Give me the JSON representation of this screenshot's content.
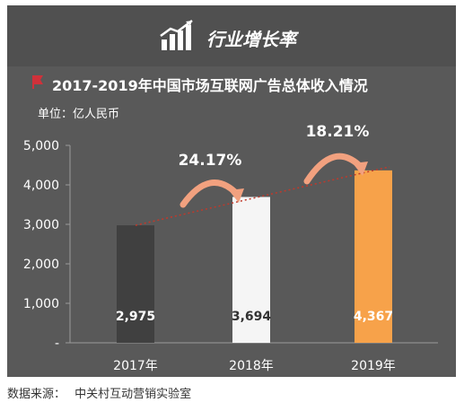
{
  "header": {
    "title": "行业增长率",
    "icon": "growth-bars-icon"
  },
  "subtitle": "2017-2019年中国市场互联网广告总体收入情况",
  "unit": "单位：亿人民币",
  "growth_labels": [
    "24.17%",
    "18.21%"
  ],
  "footer": {
    "label": "数据来源：",
    "source": "中关村互动营销实验室"
  },
  "colors": {
    "panel": "#595959",
    "bar_2017": "#404040",
    "bar_2018": "#f5f5f5",
    "bar_2019": "#f7a24a",
    "arrow": "#f2a17f",
    "trend": "#c0392b",
    "flag": "#d0313a"
  },
  "chart_data": {
    "type": "bar",
    "title": "2017-2019年中国市场互联网广告总体收入情况",
    "categories": [
      "2017年",
      "2018年",
      "2019年"
    ],
    "values": [
      2975,
      3694,
      4367
    ],
    "data_labels": [
      "2,975",
      "3,694",
      "4,367"
    ],
    "ylabel": "单位：亿人民币",
    "ylim": [
      0,
      5000
    ],
    "yticks": [
      "-",
      "1,000",
      "2,000",
      "3,000",
      "4,000",
      "5,000"
    ],
    "grid": false,
    "trendline": "dotted",
    "growth": [
      "24.17%",
      "18.21%"
    ]
  }
}
